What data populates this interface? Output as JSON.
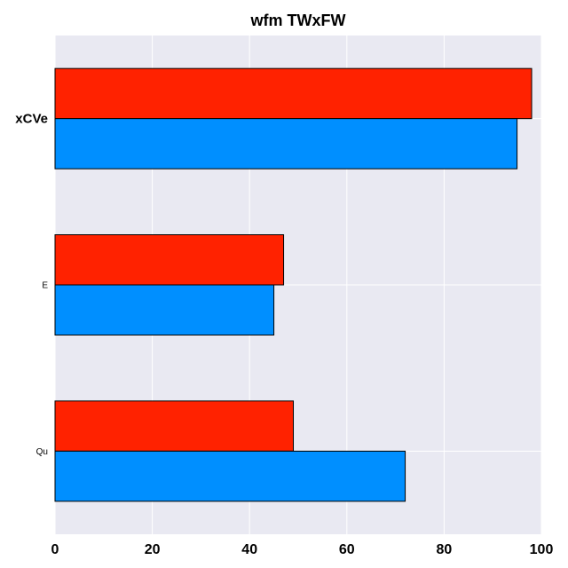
{
  "chart_data": {
    "type": "bar",
    "orientation": "horizontal",
    "title": "wfm TWxFW",
    "xlabel": "",
    "ylabel": "",
    "categories": [
      "xCVe",
      "E",
      "Qu"
    ],
    "series": [
      {
        "values": [
          98,
          47,
          49
        ],
        "color": "#ff2200"
      },
      {
        "values": [
          95,
          45,
          72
        ],
        "color": "#008fff"
      }
    ],
    "xlim": [
      0,
      100
    ],
    "xticks": [
      0,
      20,
      40,
      60,
      80,
      100
    ],
    "grid": true,
    "legend": "none",
    "background_color": "#e9e9f2",
    "grid_color": "#ffffff"
  }
}
